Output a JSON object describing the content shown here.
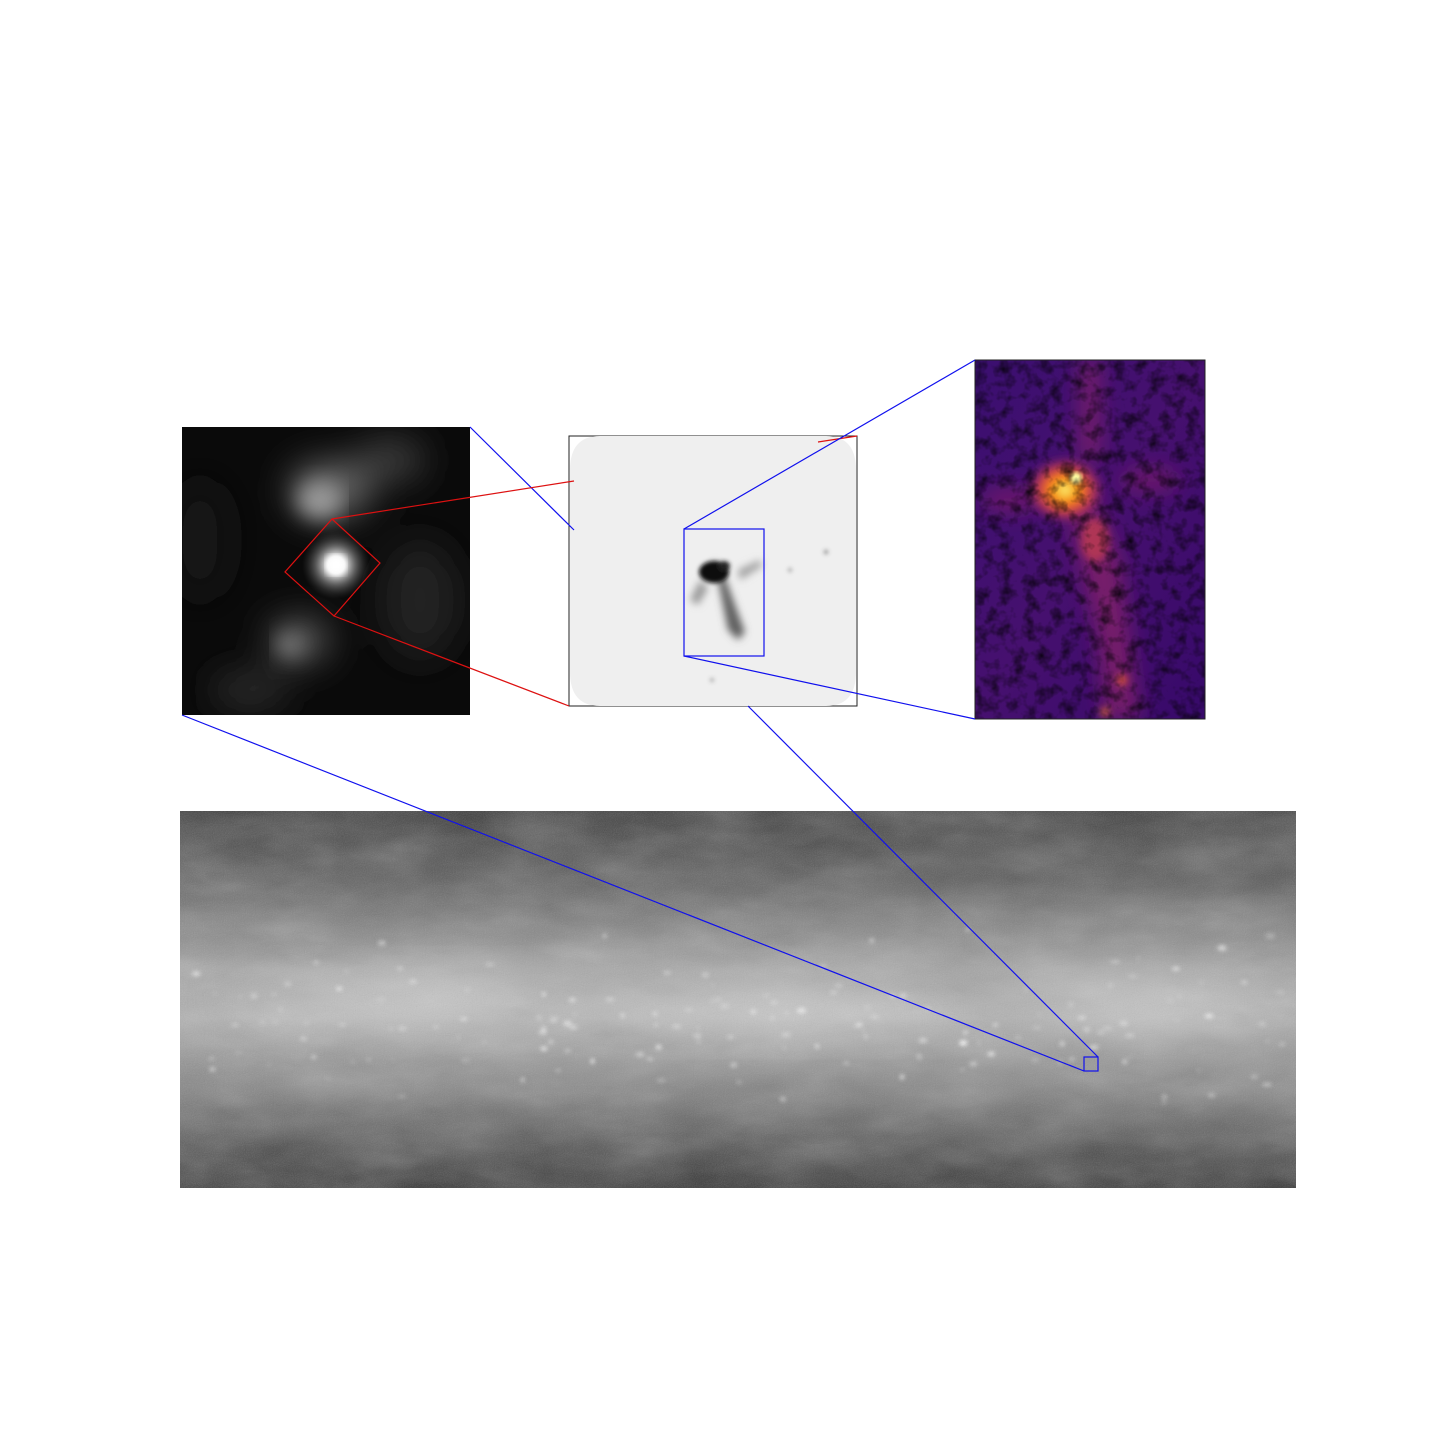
{
  "figure": {
    "panels": [
      {
        "id": "survey-strip",
        "colormap": "grayscale"
      },
      {
        "id": "zoom-grayscale",
        "colormap": "grayscale"
      },
      {
        "id": "zoom-inverted",
        "colormap": "inverted-grayscale"
      },
      {
        "id": "zoom-inferno",
        "colormap": "inferno"
      }
    ],
    "colors": {
      "zoom_outline_blue": "#1010ee",
      "zoom_outline_red": "#dd1111",
      "panel_frame": "#222222",
      "background": "#ffffff"
    }
  }
}
